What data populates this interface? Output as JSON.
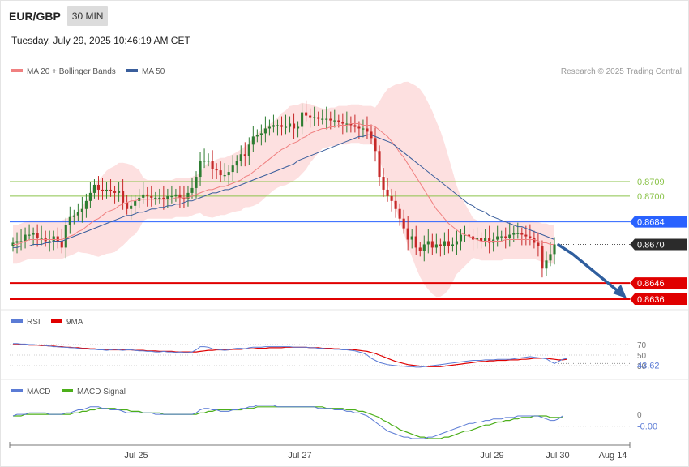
{
  "header": {
    "symbol": "EUR/GBP",
    "timeframe": "30 MIN",
    "datetime": "Tuesday, July 29, 2025 10:46:19 AM CET"
  },
  "legend": {
    "ma20": "MA 20 + Bollinger Bands",
    "ma50": "MA 50",
    "credit": "Research © 2025 Trading Central"
  },
  "colors": {
    "ma20": "#f08080",
    "ma50": "#3a5e9c",
    "band_fill": "#fde0e0",
    "up_candle": "#2e7d32",
    "down_candle": "#c62828",
    "resistance": "#8bc34a",
    "pivot": "#2962ff",
    "support": "#e00000",
    "arrow": "#2f5e9e",
    "rsi": "#5b7bd5",
    "rsi_ma": "#e00000",
    "macd": "#5b7bd5",
    "macd_signal": "#4caf1a"
  },
  "chart_data": [
    {
      "type": "line",
      "title": "",
      "ylim": [
        0.8615,
        0.8765
      ],
      "x_ticks": [
        "Jul 25",
        "Jul 27",
        "Jul 29",
        "Jul 30",
        "Aug 14"
      ],
      "close": [
        0.8671,
        0.8672,
        0.8672,
        0.8676,
        0.8676,
        0.8677,
        0.8674,
        0.8674,
        0.8672,
        0.8672,
        0.8675,
        0.8672,
        0.8668,
        0.8682,
        0.8687,
        0.8688,
        0.869,
        0.8692,
        0.8697,
        0.8702,
        0.8707,
        0.8704,
        0.8703,
        0.8704,
        0.8703,
        0.8702,
        0.8703,
        0.8696,
        0.8692,
        0.8694,
        0.8697,
        0.8699,
        0.8701,
        0.87,
        0.8699,
        0.8699,
        0.8699,
        0.8698,
        0.87,
        0.87,
        0.8701,
        0.8699,
        0.8698,
        0.8702,
        0.8705,
        0.8712,
        0.8722,
        0.8722,
        0.8722,
        0.8717,
        0.8716,
        0.8713,
        0.8713,
        0.8715,
        0.8719,
        0.8722,
        0.8726,
        0.8725,
        0.8732,
        0.8737,
        0.8738,
        0.8739,
        0.8742,
        0.8743,
        0.8744,
        0.8744,
        0.8743,
        0.8743,
        0.8745,
        0.8742,
        0.8743,
        0.8752,
        0.875,
        0.8749,
        0.8749,
        0.8748,
        0.8748,
        0.8748,
        0.8747,
        0.8747,
        0.8746,
        0.8745,
        0.8745,
        0.8744,
        0.8743,
        0.8742,
        0.8742,
        0.874,
        0.8736,
        0.8728,
        0.8712,
        0.8704,
        0.87,
        0.8697,
        0.8692,
        0.8686,
        0.868,
        0.8673,
        0.8675,
        0.8668,
        0.8666,
        0.867,
        0.8672,
        0.8668,
        0.867,
        0.8669,
        0.8672,
        0.8669,
        0.867,
        0.8672,
        0.8676,
        0.8676,
        0.8675,
        0.8673,
        0.8674,
        0.8672,
        0.8674,
        0.8671,
        0.8673,
        0.8675,
        0.8675,
        0.8674,
        0.8676,
        0.8677,
        0.8677,
        0.8676,
        0.8675,
        0.8674,
        0.8671,
        0.8669,
        0.8655,
        0.866,
        0.8664,
        0.867
      ],
      "series": [
        {
          "name": "MA 20 + Bollinger Bands",
          "values": [
            0.867,
            0.867,
            0.8671,
            0.8672,
            0.8673,
            0.8673,
            0.8673,
            0.8673,
            0.8673,
            0.8673,
            0.8673,
            0.8673,
            0.8673,
            0.8674,
            0.8675,
            0.8676,
            0.8678,
            0.8679,
            0.8681,
            0.8683,
            0.8685,
            0.8686,
            0.8688,
            0.869,
            0.8691,
            0.8692,
            0.8694,
            0.8695,
            0.8696,
            0.8697,
            0.8697,
            0.8698,
            0.8698,
            0.8698,
            0.8698,
            0.8698,
            0.8698,
            0.8698,
            0.8698,
            0.8698,
            0.8699,
            0.8699,
            0.8699,
            0.8699,
            0.87,
            0.8701,
            0.8702,
            0.8703,
            0.8704,
            0.8704,
            0.8705,
            0.8706,
            0.8706,
            0.8707,
            0.8708,
            0.8709,
            0.871,
            0.8712,
            0.8713,
            0.8715,
            0.8717,
            0.8719,
            0.8721,
            0.8723,
            0.8725,
            0.8727,
            0.8729,
            0.873,
            0.8732,
            0.8733,
            0.8734,
            0.8736,
            0.8737,
            0.8739,
            0.874,
            0.8741,
            0.8742,
            0.8742,
            0.8743,
            0.8743,
            0.8744,
            0.8744,
            0.8744,
            0.8745,
            0.8745,
            0.8745,
            0.8744,
            0.8744,
            0.8744,
            0.8743,
            0.8741,
            0.8739,
            0.8737,
            0.8734,
            0.8731,
            0.8727,
            0.8724,
            0.872,
            0.8716,
            0.8712,
            0.8708,
            0.8704,
            0.87,
            0.8696,
            0.8692,
            0.8689,
            0.8686,
            0.8683,
            0.8681,
            0.8679,
            0.8677,
            0.8676,
            0.8675,
            0.8674,
            0.8673,
            0.8672,
            0.8672,
            0.8672,
            0.8672,
            0.8672,
            0.8672,
            0.8673,
            0.8673,
            0.8673,
            0.8673,
            0.8673,
            0.8673,
            0.8673,
            0.8673,
            0.8672,
            0.8671,
            0.8671,
            0.867,
            0.867
          ]
        },
        {
          "name": "MA 50",
          "values": [
            0.8668,
            0.8668,
            0.8669,
            0.8669,
            0.8669,
            0.867,
            0.867,
            0.867,
            0.8671,
            0.8671,
            0.8672,
            0.8672,
            0.8672,
            0.8673,
            0.8674,
            0.8675,
            0.8676,
            0.8677,
            0.8678,
            0.8679,
            0.868,
            0.8681,
            0.8682,
            0.8683,
            0.8684,
            0.8685,
            0.8686,
            0.8687,
            0.8688,
            0.8688,
            0.8689,
            0.869,
            0.869,
            0.8691,
            0.8692,
            0.8692,
            0.8693,
            0.8693,
            0.8694,
            0.8694,
            0.8695,
            0.8695,
            0.8696,
            0.8697,
            0.8697,
            0.8698,
            0.8699,
            0.87,
            0.8701,
            0.8702,
            0.8702,
            0.8703,
            0.8704,
            0.8704,
            0.8705,
            0.8706,
            0.8707,
            0.8708,
            0.8709,
            0.871,
            0.8711,
            0.8712,
            0.8713,
            0.8714,
            0.8715,
            0.8716,
            0.8717,
            0.8718,
            0.8719,
            0.872,
            0.8722,
            0.8723,
            0.8724,
            0.8725,
            0.8726,
            0.8727,
            0.8728,
            0.8729,
            0.873,
            0.8731,
            0.8732,
            0.8733,
            0.8734,
            0.8735,
            0.8736,
            0.8737,
            0.8737,
            0.8738,
            0.8738,
            0.8737,
            0.8736,
            0.8735,
            0.8734,
            0.8733,
            0.8731,
            0.8729,
            0.8727,
            0.8725,
            0.8723,
            0.8721,
            0.8719,
            0.8717,
            0.8715,
            0.8713,
            0.8711,
            0.8709,
            0.8707,
            0.8705,
            0.8703,
            0.8701,
            0.8699,
            0.8697,
            0.8695,
            0.8694,
            0.8692,
            0.8691,
            0.869,
            0.8688,
            0.8687,
            0.8686,
            0.8685,
            0.8684,
            0.8683,
            0.8682,
            0.8681,
            0.8681,
            0.868,
            0.8679,
            0.8678,
            0.8677,
            0.8676,
            0.8675,
            0.8674,
            0.8673
          ]
        }
      ],
      "levels": [
        {
          "value": 0.8709,
          "label": "0.8709",
          "kind": "resistance"
        },
        {
          "value": 0.87,
          "label": "0.8700",
          "kind": "resistance"
        },
        {
          "value": 0.8684,
          "label": "0.8684",
          "kind": "pivot"
        },
        {
          "value": 0.867,
          "label": "0.8670",
          "kind": "last"
        },
        {
          "value": 0.8646,
          "label": "0.8646",
          "kind": "support"
        },
        {
          "value": 0.8636,
          "label": "0.8636",
          "kind": "support"
        }
      ]
    },
    {
      "type": "line",
      "title": "",
      "ylim": [
        20,
        80
      ],
      "y_ticks": [
        70,
        50,
        30
      ],
      "series": [
        {
          "name": "RSI",
          "values": [
            72,
            72,
            71,
            71,
            70,
            70,
            69,
            69,
            68,
            67,
            66,
            66,
            65,
            65,
            64,
            64,
            63,
            62,
            62,
            61,
            61,
            60,
            60,
            59,
            60,
            61,
            60,
            59,
            60,
            60,
            59,
            58,
            58,
            57,
            57,
            56,
            56,
            57,
            56,
            56,
            55,
            56,
            55,
            55,
            56,
            60,
            66,
            66,
            65,
            62,
            61,
            60,
            59,
            60,
            62,
            63,
            63,
            62,
            64,
            65,
            65,
            65,
            66,
            66,
            66,
            66,
            66,
            66,
            66,
            65,
            65,
            65,
            65,
            64,
            64,
            63,
            63,
            62,
            62,
            61,
            61,
            60,
            60,
            59,
            58,
            56,
            54,
            50,
            44,
            40,
            36,
            34,
            32,
            31,
            30,
            29,
            29,
            28,
            28,
            27,
            27,
            28,
            29,
            30,
            31,
            32,
            33,
            34,
            35,
            36,
            37,
            38,
            39,
            40,
            40,
            40,
            41,
            41,
            41,
            42,
            42,
            42,
            42,
            43,
            44,
            45,
            46,
            47,
            46,
            45,
            44,
            43,
            38,
            34,
            38,
            42,
            43.62
          ]
        },
        {
          "name": "9MA",
          "values": [
            70,
            70,
            70,
            70,
            69,
            69,
            69,
            68,
            68,
            67,
            67,
            66,
            66,
            65,
            65,
            64,
            64,
            63,
            63,
            62,
            62,
            61,
            61,
            61,
            60,
            60,
            60,
            60,
            60,
            60,
            59,
            59,
            59,
            58,
            58,
            58,
            57,
            57,
            57,
            57,
            56,
            56,
            56,
            56,
            56,
            56,
            57,
            58,
            59,
            59,
            60,
            60,
            60,
            60,
            61,
            61,
            61,
            62,
            62,
            62,
            63,
            63,
            63,
            64,
            64,
            64,
            64,
            65,
            65,
            65,
            65,
            65,
            65,
            64,
            64,
            64,
            63,
            63,
            63,
            62,
            62,
            61,
            61,
            61,
            60,
            59,
            58,
            57,
            55,
            53,
            50,
            47,
            44,
            41,
            38,
            36,
            34,
            32,
            31,
            30,
            29,
            29,
            28,
            28,
            28,
            28,
            29,
            30,
            31,
            32,
            33,
            34,
            35,
            36,
            37,
            38,
            38,
            39,
            39,
            40,
            40,
            40,
            41,
            41,
            41,
            42,
            42,
            43,
            44,
            44,
            44,
            44,
            43,
            42,
            41,
            41,
            42
          ]
        }
      ],
      "last_value": "43.62"
    },
    {
      "type": "line",
      "title": "",
      "ylim": [
        -0.0016,
        0.0009
      ],
      "y_ticks": [
        0
      ],
      "series": [
        {
          "name": "MACD",
          "values": [
            0.0,
            0.0001,
            0.0001,
            0.0001,
            0.0002,
            0.0002,
            0.0002,
            0.0002,
            0.0002,
            0.0001,
            0.0001,
            0.0001,
            0.0001,
            0.0002,
            0.0002,
            0.0003,
            0.0004,
            0.0004,
            0.0005,
            0.0006,
            0.0006,
            0.0006,
            0.0005,
            0.0005,
            0.0004,
            0.0004,
            0.0004,
            0.0003,
            0.0002,
            0.0002,
            0.0002,
            0.0002,
            0.0002,
            0.0002,
            0.0002,
            0.0001,
            0.0001,
            0.0001,
            0.0001,
            0.0001,
            0.0001,
            0.0001,
            0.0001,
            0.0001,
            0.0001,
            0.0002,
            0.0004,
            0.0005,
            0.0005,
            0.0004,
            0.0004,
            0.0003,
            0.0003,
            0.0003,
            0.0004,
            0.0004,
            0.0005,
            0.0005,
            0.0006,
            0.0006,
            0.0007,
            0.0007,
            0.0007,
            0.0007,
            0.0007,
            0.0006,
            0.0006,
            0.0006,
            0.0006,
            0.0006,
            0.0006,
            0.0006,
            0.0006,
            0.0006,
            0.0006,
            0.0005,
            0.0005,
            0.0005,
            0.0005,
            0.0004,
            0.0004,
            0.0004,
            0.0003,
            0.0003,
            0.0002,
            0.0002,
            0.0001,
            0.0,
            -0.0002,
            -0.0004,
            -0.0006,
            -0.0008,
            -0.001,
            -0.0011,
            -0.0012,
            -0.0013,
            -0.0014,
            -0.0014,
            -0.0015,
            -0.0015,
            -0.0015,
            -0.0015,
            -0.0014,
            -0.0014,
            -0.0013,
            -0.0012,
            -0.0011,
            -0.001,
            -0.0009,
            -0.0008,
            -0.0007,
            -0.0006,
            -0.0005,
            -0.0005,
            -0.0004,
            -0.0004,
            -0.0003,
            -0.0003,
            -0.0002,
            -0.0002,
            -0.0002,
            -0.0001,
            -0.0001,
            -0.0001,
            0.0,
            0.0,
            0.0,
            0.0,
            0.0,
            0.0,
            -0.0001,
            -0.0002,
            -0.0003,
            -0.0003,
            -0.0002,
            0.0
          ]
        },
        {
          "name": "MACD Signal",
          "values": [
            0.0,
            0.0,
            0.0,
            0.0001,
            0.0001,
            0.0001,
            0.0001,
            0.0001,
            0.0001,
            0.0001,
            0.0001,
            0.0001,
            0.0001,
            0.0001,
            0.0001,
            0.0002,
            0.0002,
            0.0003,
            0.0003,
            0.0004,
            0.0004,
            0.0005,
            0.0005,
            0.0005,
            0.0005,
            0.0005,
            0.0004,
            0.0004,
            0.0004,
            0.0003,
            0.0003,
            0.0003,
            0.0002,
            0.0002,
            0.0002,
            0.0002,
            0.0002,
            0.0001,
            0.0001,
            0.0001,
            0.0001,
            0.0001,
            0.0001,
            0.0001,
            0.0001,
            0.0001,
            0.0002,
            0.0002,
            0.0003,
            0.0003,
            0.0004,
            0.0004,
            0.0004,
            0.0004,
            0.0004,
            0.0004,
            0.0004,
            0.0005,
            0.0005,
            0.0005,
            0.0006,
            0.0006,
            0.0006,
            0.0006,
            0.0006,
            0.0006,
            0.0006,
            0.0006,
            0.0006,
            0.0006,
            0.0006,
            0.0006,
            0.0006,
            0.0006,
            0.0006,
            0.0006,
            0.0006,
            0.0005,
            0.0005,
            0.0005,
            0.0005,
            0.0005,
            0.0004,
            0.0004,
            0.0004,
            0.0003,
            0.0003,
            0.0002,
            0.0001,
            0.0,
            -0.0001,
            -0.0003,
            -0.0004,
            -0.0006,
            -0.0007,
            -0.0009,
            -0.001,
            -0.0011,
            -0.0012,
            -0.0013,
            -0.0014,
            -0.0014,
            -0.0015,
            -0.0015,
            -0.0015,
            -0.0015,
            -0.0014,
            -0.0014,
            -0.0013,
            -0.0012,
            -0.0011,
            -0.001,
            -0.001,
            -0.0009,
            -0.0008,
            -0.0007,
            -0.0006,
            -0.0006,
            -0.0005,
            -0.0004,
            -0.0004,
            -0.0003,
            -0.0003,
            -0.0002,
            -0.0002,
            -0.0001,
            -0.0001,
            -0.0001,
            0.0,
            0.0,
            0.0,
            0.0,
            -0.0001,
            -0.0001,
            -0.0001,
            -0.0001
          ]
        }
      ],
      "last_value": "-0.00"
    }
  ]
}
